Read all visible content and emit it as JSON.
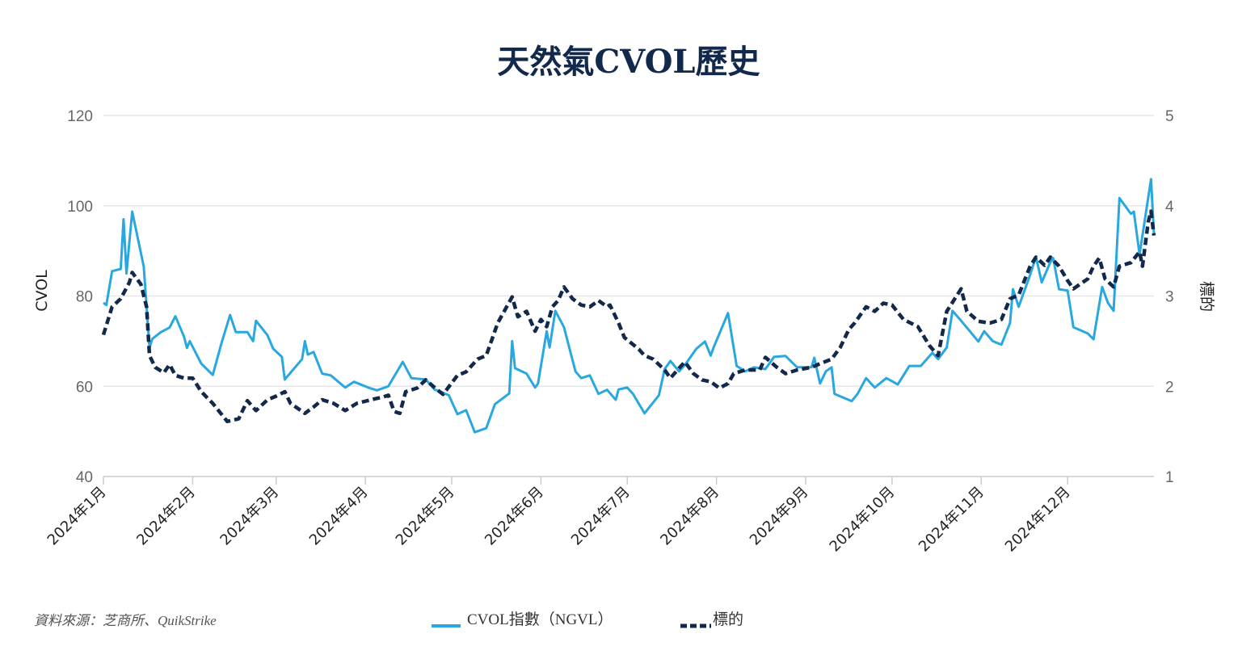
{
  "chart_data": {
    "type": "line",
    "title": "天然氣CVOL歷史",
    "ylabel": "CVOL",
    "y2label": "標的",
    "ylim": [
      40,
      120
    ],
    "y2lim": [
      1,
      5
    ],
    "yticks": [
      "40",
      "60",
      "80",
      "100",
      "120"
    ],
    "y2ticks": [
      "1",
      "2",
      "3",
      "4",
      "5"
    ],
    "xlim": [
      "2024-01-01",
      "2024-12-31"
    ],
    "xticks": [
      {
        "date": "2024-01-01",
        "label": "2024年1月"
      },
      {
        "date": "2024-02-01",
        "label": "2024年2月"
      },
      {
        "date": "2024-03-01",
        "label": "2024年3月"
      },
      {
        "date": "2024-04-01",
        "label": "2024年4月"
      },
      {
        "date": "2024-05-01",
        "label": "2024年5月"
      },
      {
        "date": "2024-06-01",
        "label": "2024年6月"
      },
      {
        "date": "2024-07-01",
        "label": "2024年7月"
      },
      {
        "date": "2024-08-01",
        "label": "2024年8月"
      },
      {
        "date": "2024-09-01",
        "label": "2024年9月"
      },
      {
        "date": "2024-10-01",
        "label": "2024年10月"
      },
      {
        "date": "2024-11-01",
        "label": "2024年11月"
      },
      {
        "date": "2024-12-01",
        "label": "2024年12月"
      }
    ],
    "grid": true,
    "legend_position": "bottom",
    "source": "資料來源：芝商所、QuikStrike",
    "series": [
      {
        "name": "CVOL指數（NGVL）",
        "axis": "left",
        "color": "#29a8e0",
        "style": "solid",
        "points": [
          [
            "2024-01-01",
            78.5
          ],
          [
            "2024-01-02",
            78
          ],
          [
            "2024-01-04",
            85.5
          ],
          [
            "2024-01-07",
            86
          ],
          [
            "2024-01-08",
            97
          ],
          [
            "2024-01-09",
            85
          ],
          [
            "2024-01-11",
            98.7
          ],
          [
            "2024-01-15",
            86.5
          ],
          [
            "2024-01-17",
            68.5
          ],
          [
            "2024-01-18",
            70.5
          ],
          [
            "2024-01-21",
            72
          ],
          [
            "2024-01-24",
            73
          ],
          [
            "2024-01-26",
            75.5
          ],
          [
            "2024-01-29",
            71
          ],
          [
            "2024-01-30",
            68.5
          ],
          [
            "2024-01-31",
            70
          ],
          [
            "2024-02-04",
            65
          ],
          [
            "2024-02-08",
            62.5
          ],
          [
            "2024-02-11",
            69.5
          ],
          [
            "2024-02-14",
            75.8
          ],
          [
            "2024-02-16",
            72
          ],
          [
            "2024-02-20",
            72
          ],
          [
            "2024-02-22",
            70
          ],
          [
            "2024-02-23",
            74.5
          ],
          [
            "2024-02-27",
            71.3
          ],
          [
            "2024-02-29",
            68.3
          ],
          [
            "2024-03-03",
            66.5
          ],
          [
            "2024-03-04",
            61.5
          ],
          [
            "2024-03-06",
            63
          ],
          [
            "2024-03-10",
            66
          ],
          [
            "2024-03-11",
            70
          ],
          [
            "2024-03-12",
            67
          ],
          [
            "2024-03-14",
            67.6
          ],
          [
            "2024-03-17",
            62.8
          ],
          [
            "2024-03-20",
            62.4
          ],
          [
            "2024-03-25",
            59.7
          ],
          [
            "2024-03-28",
            61
          ],
          [
            "2024-04-02",
            59.7
          ],
          [
            "2024-04-05",
            59.1
          ],
          [
            "2024-04-09",
            60
          ],
          [
            "2024-04-14",
            65.4
          ],
          [
            "2024-04-17",
            61.8
          ],
          [
            "2024-04-22",
            61.5
          ],
          [
            "2024-04-25",
            59.3
          ],
          [
            "2024-04-30",
            58
          ],
          [
            "2024-05-03",
            53.8
          ],
          [
            "2024-05-06",
            54.7
          ],
          [
            "2024-05-09",
            49.8
          ],
          [
            "2024-05-13",
            50.7
          ],
          [
            "2024-05-16",
            56
          ],
          [
            "2024-05-21",
            58.4
          ],
          [
            "2024-05-22",
            70
          ],
          [
            "2024-05-23",
            64
          ],
          [
            "2024-05-27",
            62.8
          ],
          [
            "2024-05-30",
            59.7
          ],
          [
            "2024-05-31",
            60.6
          ],
          [
            "2024-06-03",
            72.2
          ],
          [
            "2024-06-04",
            68.6
          ],
          [
            "2024-06-06",
            76.7
          ],
          [
            "2024-06-09",
            73.1
          ],
          [
            "2024-06-13",
            63.3
          ],
          [
            "2024-06-15",
            61.8
          ],
          [
            "2024-06-18",
            62.4
          ],
          [
            "2024-06-21",
            58.3
          ],
          [
            "2024-06-24",
            59.2
          ],
          [
            "2024-06-27",
            57
          ],
          [
            "2024-06-28",
            59.3
          ],
          [
            "2024-07-01",
            59.7
          ],
          [
            "2024-07-03",
            58.3
          ],
          [
            "2024-07-07",
            54
          ],
          [
            "2024-07-12",
            58
          ],
          [
            "2024-07-14",
            63.8
          ],
          [
            "2024-07-16",
            65.6
          ],
          [
            "2024-07-19",
            63.3
          ],
          [
            "2024-07-21",
            64.7
          ],
          [
            "2024-07-25",
            68.3
          ],
          [
            "2024-07-28",
            69.9
          ],
          [
            "2024-07-30",
            66.8
          ],
          [
            "2024-07-31",
            68.6
          ],
          [
            "2024-08-05",
            76.2
          ],
          [
            "2024-08-08",
            64.5
          ],
          [
            "2024-08-11",
            63.3
          ],
          [
            "2024-08-14",
            64.2
          ],
          [
            "2024-08-18",
            63.8
          ],
          [
            "2024-08-21",
            66.5
          ],
          [
            "2024-08-25",
            66.7
          ],
          [
            "2024-08-29",
            64.2
          ],
          [
            "2024-09-03",
            64.2
          ],
          [
            "2024-09-04",
            66.3
          ],
          [
            "2024-09-06",
            60.6
          ],
          [
            "2024-09-08",
            63.3
          ],
          [
            "2024-09-10",
            64.2
          ],
          [
            "2024-09-11",
            58.3
          ],
          [
            "2024-09-17",
            56.7
          ],
          [
            "2024-09-19",
            58.3
          ],
          [
            "2024-09-22",
            61.8
          ],
          [
            "2024-09-25",
            59.7
          ],
          [
            "2024-09-29",
            61.8
          ],
          [
            "2024-10-03",
            60.4
          ],
          [
            "2024-10-07",
            64.5
          ],
          [
            "2024-10-11",
            64.5
          ],
          [
            "2024-10-15",
            67.4
          ],
          [
            "2024-10-17",
            66
          ],
          [
            "2024-10-20",
            68.6
          ],
          [
            "2024-10-22",
            76.7
          ],
          [
            "2024-10-25",
            74.5
          ],
          [
            "2024-10-28",
            72.2
          ],
          [
            "2024-10-31",
            69.9
          ],
          [
            "2024-11-02",
            72.2
          ],
          [
            "2024-11-05",
            70
          ],
          [
            "2024-11-08",
            69.2
          ],
          [
            "2024-11-11",
            74
          ],
          [
            "2024-11-12",
            81.5
          ],
          [
            "2024-11-14",
            77.6
          ],
          [
            "2024-11-18",
            84.7
          ],
          [
            "2024-11-20",
            88.7
          ],
          [
            "2024-11-22",
            83
          ],
          [
            "2024-11-25",
            87.5
          ],
          [
            "2024-11-26",
            88.4
          ],
          [
            "2024-11-28",
            81.5
          ],
          [
            "2024-12-01",
            81.2
          ],
          [
            "2024-12-03",
            73.1
          ],
          [
            "2024-12-08",
            71.7
          ],
          [
            "2024-12-10",
            70.4
          ],
          [
            "2024-12-13",
            82
          ],
          [
            "2024-12-15",
            78.5
          ],
          [
            "2024-12-17",
            76.7
          ],
          [
            "2024-12-19",
            101.7
          ],
          [
            "2024-12-23",
            98.2
          ],
          [
            "2024-12-24",
            98.7
          ],
          [
            "2024-12-26",
            89.2
          ],
          [
            "2024-12-30",
            105.9
          ],
          [
            "2024-12-31",
            93.7
          ]
        ]
      },
      {
        "name": "標的",
        "axis": "right",
        "color": "#13294b",
        "style": "dashed",
        "points": [
          [
            "2024-01-01",
            2.57
          ],
          [
            "2024-01-04",
            2.88
          ],
          [
            "2024-01-07",
            2.97
          ],
          [
            "2024-01-10",
            3.15
          ],
          [
            "2024-01-11",
            3.26
          ],
          [
            "2024-01-14",
            3.13
          ],
          [
            "2024-01-16",
            2.88
          ],
          [
            "2024-01-17",
            2.34
          ],
          [
            "2024-01-19",
            2.21
          ],
          [
            "2024-01-22",
            2.15
          ],
          [
            "2024-01-24",
            2.24
          ],
          [
            "2024-01-26",
            2.12
          ],
          [
            "2024-01-29",
            2.09
          ],
          [
            "2024-02-01",
            2.09
          ],
          [
            "2024-02-04",
            1.94
          ],
          [
            "2024-02-08",
            1.81
          ],
          [
            "2024-02-13",
            1.61
          ],
          [
            "2024-02-17",
            1.64
          ],
          [
            "2024-02-20",
            1.84
          ],
          [
            "2024-02-23",
            1.73
          ],
          [
            "2024-02-27",
            1.85
          ],
          [
            "2024-03-01",
            1.89
          ],
          [
            "2024-03-04",
            1.94
          ],
          [
            "2024-03-06",
            1.81
          ],
          [
            "2024-03-11",
            1.7
          ],
          [
            "2024-03-14",
            1.77
          ],
          [
            "2024-03-17",
            1.85
          ],
          [
            "2024-03-21",
            1.81
          ],
          [
            "2024-03-25",
            1.73
          ],
          [
            "2024-03-29",
            1.81
          ],
          [
            "2024-04-03",
            1.85
          ],
          [
            "2024-04-07",
            1.88
          ],
          [
            "2024-04-09",
            1.9
          ],
          [
            "2024-04-11",
            1.72
          ],
          [
            "2024-04-13",
            1.7
          ],
          [
            "2024-04-15",
            1.94
          ],
          [
            "2024-04-19",
            1.98
          ],
          [
            "2024-04-22",
            2.07
          ],
          [
            "2024-04-26",
            1.96
          ],
          [
            "2024-04-28",
            1.91
          ],
          [
            "2024-05-03",
            2.12
          ],
          [
            "2024-05-06",
            2.16
          ],
          [
            "2024-05-10",
            2.3
          ],
          [
            "2024-05-13",
            2.34
          ],
          [
            "2024-05-17",
            2.7
          ],
          [
            "2024-05-22",
            2.99
          ],
          [
            "2024-05-23",
            2.88
          ],
          [
            "2024-05-24",
            2.77
          ],
          [
            "2024-05-27",
            2.83
          ],
          [
            "2024-05-30",
            2.61
          ],
          [
            "2024-06-01",
            2.74
          ],
          [
            "2024-06-03",
            2.66
          ],
          [
            "2024-06-05",
            2.88
          ],
          [
            "2024-06-07",
            2.95
          ],
          [
            "2024-06-09",
            3.1
          ],
          [
            "2024-06-12",
            2.97
          ],
          [
            "2024-06-15",
            2.9
          ],
          [
            "2024-06-18",
            2.88
          ],
          [
            "2024-06-21",
            2.95
          ],
          [
            "2024-06-24",
            2.88
          ],
          [
            "2024-06-25",
            2.9
          ],
          [
            "2024-06-28",
            2.7
          ],
          [
            "2024-06-30",
            2.54
          ],
          [
            "2024-07-05",
            2.41
          ],
          [
            "2024-07-07",
            2.34
          ],
          [
            "2024-07-10",
            2.3
          ],
          [
            "2024-07-14",
            2.18
          ],
          [
            "2024-07-16",
            2.09
          ],
          [
            "2024-07-19",
            2.2
          ],
          [
            "2024-07-21",
            2.27
          ],
          [
            "2024-07-24",
            2.14
          ],
          [
            "2024-07-27",
            2.07
          ],
          [
            "2024-07-30",
            2.05
          ],
          [
            "2024-08-02",
            1.98
          ],
          [
            "2024-08-05",
            2.03
          ],
          [
            "2024-08-07",
            2.14
          ],
          [
            "2024-08-11",
            2.18
          ],
          [
            "2024-08-16",
            2.18
          ],
          [
            "2024-08-18",
            2.32
          ],
          [
            "2024-08-22",
            2.21
          ],
          [
            "2024-08-25",
            2.14
          ],
          [
            "2024-08-29",
            2.18
          ],
          [
            "2024-09-03",
            2.21
          ],
          [
            "2024-09-06",
            2.25
          ],
          [
            "2024-09-10",
            2.3
          ],
          [
            "2024-09-13",
            2.43
          ],
          [
            "2024-09-16",
            2.63
          ],
          [
            "2024-09-18",
            2.7
          ],
          [
            "2024-09-22",
            2.88
          ],
          [
            "2024-09-25",
            2.83
          ],
          [
            "2024-09-28",
            2.92
          ],
          [
            "2024-10-01",
            2.9
          ],
          [
            "2024-10-05",
            2.74
          ],
          [
            "2024-10-10",
            2.66
          ],
          [
            "2024-10-14",
            2.45
          ],
          [
            "2024-10-17",
            2.34
          ],
          [
            "2024-10-20",
            2.83
          ],
          [
            "2024-10-25",
            3.08
          ],
          [
            "2024-10-27",
            2.83
          ],
          [
            "2024-10-31",
            2.72
          ],
          [
            "2024-11-04",
            2.7
          ],
          [
            "2024-11-08",
            2.74
          ],
          [
            "2024-11-11",
            2.97
          ],
          [
            "2024-11-14",
            3.01
          ],
          [
            "2024-11-18",
            3.33
          ],
          [
            "2024-11-20",
            3.43
          ],
          [
            "2024-11-23",
            3.34
          ],
          [
            "2024-11-25",
            3.43
          ],
          [
            "2024-11-28",
            3.33
          ],
          [
            "2024-12-01",
            3.17
          ],
          [
            "2024-12-03",
            3.08
          ],
          [
            "2024-12-08",
            3.19
          ],
          [
            "2024-12-10",
            3.33
          ],
          [
            "2024-12-12",
            3.42
          ],
          [
            "2024-12-14",
            3.19
          ],
          [
            "2024-12-17",
            3.1
          ],
          [
            "2024-12-19",
            3.33
          ],
          [
            "2024-12-23",
            3.37
          ],
          [
            "2024-12-26",
            3.49
          ],
          [
            "2024-12-27",
            3.33
          ],
          [
            "2024-12-29",
            3.82
          ],
          [
            "2024-12-30",
            3.94
          ],
          [
            "2024-12-31",
            3.67
          ]
        ]
      }
    ]
  }
}
